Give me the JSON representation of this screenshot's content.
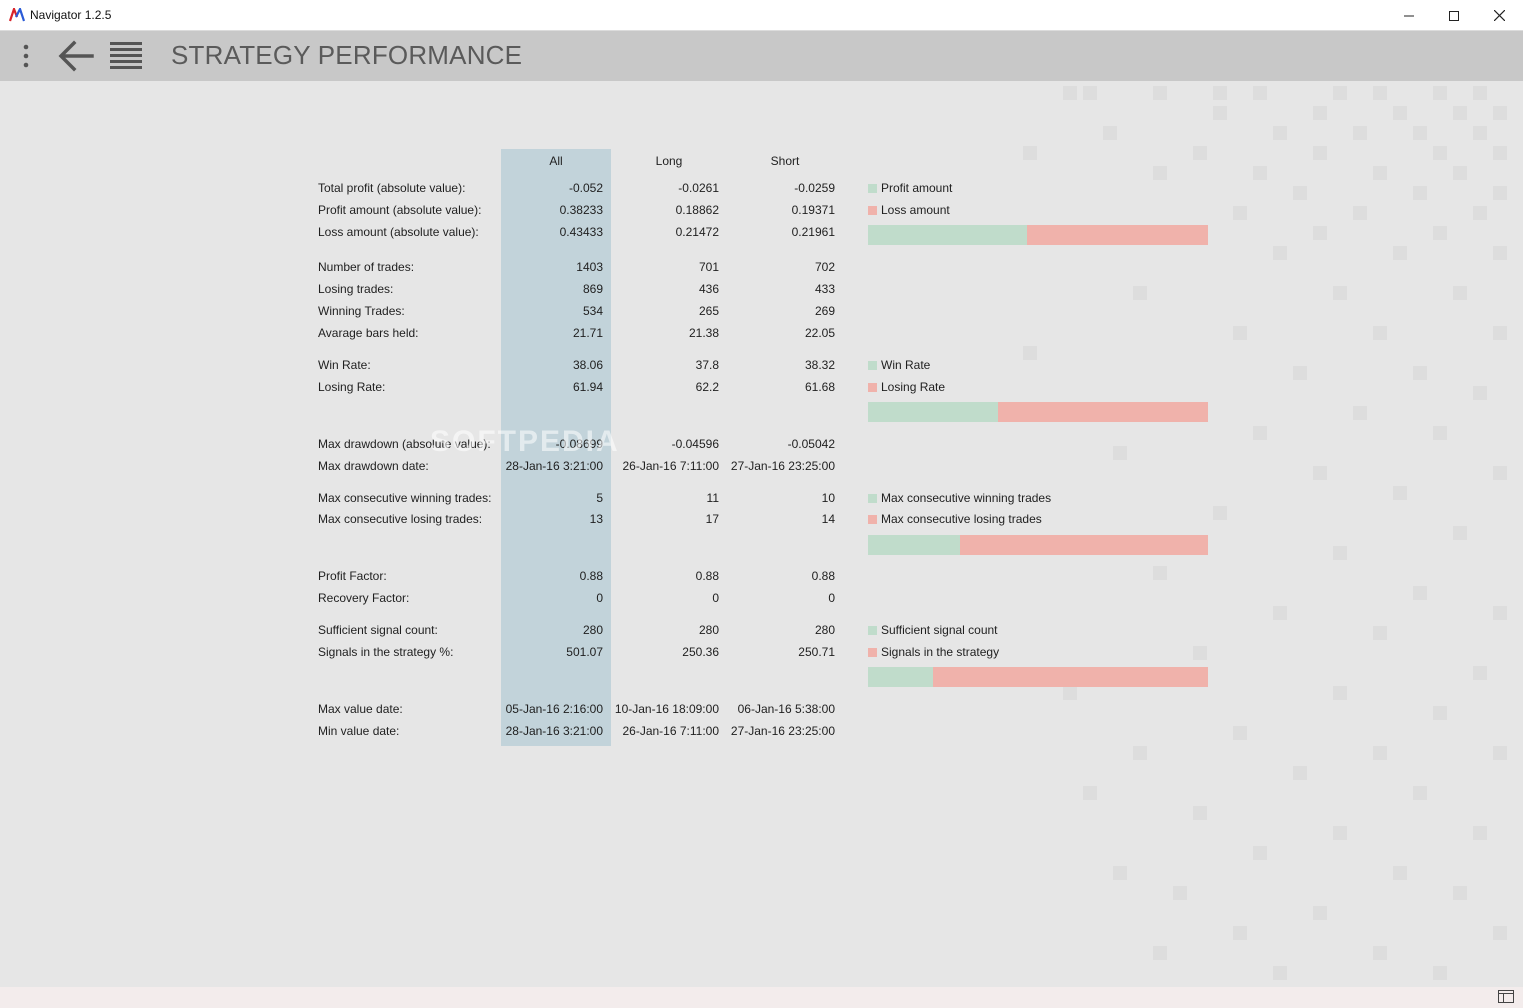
{
  "window": {
    "title": "Navigator 1.2.5",
    "minimize": "—",
    "maximize": "☐",
    "close": "✕"
  },
  "header": {
    "title": "STRATEGY PERFORMANCE",
    "icons": [
      "more-vertical-icon",
      "back-arrow-icon",
      "list-icon"
    ]
  },
  "watermark": "SOFTPEDIA",
  "columns": {
    "all": "All",
    "long": "Long",
    "short": "Short"
  },
  "rows": [
    {
      "label": "Total profit (absolute value):",
      "all": "-0.052",
      "long": "-0.0261",
      "short": "-0.0259"
    },
    {
      "label": "Profit amount (absolute value):",
      "all": "0.38233",
      "long": "0.18862",
      "short": "0.19371"
    },
    {
      "label": "Loss amount (absolute value):",
      "all": "0.43433",
      "long": "0.21472",
      "short": "0.21961"
    },
    {
      "label": "Number of trades:",
      "all": "1403",
      "long": "701",
      "short": "702"
    },
    {
      "label": "Losing trades:",
      "all": "869",
      "long": "436",
      "short": "433"
    },
    {
      "label": "Winning Trades:",
      "all": "534",
      "long": "265",
      "short": "269"
    },
    {
      "label": "Avarage bars held:",
      "all": "21.71",
      "long": "21.38",
      "short": "22.05"
    },
    {
      "label": "Win Rate:",
      "all": "38.06",
      "long": "37.8",
      "short": "38.32"
    },
    {
      "label": "Losing Rate:",
      "all": "61.94",
      "long": "62.2",
      "short": "61.68"
    },
    {
      "label": "Max drawdown (absolute value):",
      "all": "-0.08699",
      "long": "-0.04596",
      "short": "-0.05042"
    },
    {
      "label": "Max drawdown date:",
      "all": "28-Jan-16 3:21:00",
      "long": "26-Jan-16 7:11:00",
      "short": "27-Jan-16 23:25:00"
    },
    {
      "label": "Max consecutive winning trades:",
      "all": "5",
      "long": "11",
      "short": "10"
    },
    {
      "label": "Max consecutive losing trades:",
      "all": "13",
      "long": "17",
      "short": "14"
    },
    {
      "label": "Profit Factor:",
      "all": "0.88",
      "long": "0.88",
      "short": "0.88"
    },
    {
      "label": "Recovery Factor:",
      "all": "0",
      "long": "0",
      "short": "0"
    },
    {
      "label": "Sufficient signal count:",
      "all": "280",
      "long": "280",
      "short": "280"
    },
    {
      "label": "Signals in the strategy %:",
      "all": "501.07",
      "long": "250.36",
      "short": "250.71"
    },
    {
      "label": "Max value date:",
      "all": "05-Jan-16 2:16:00",
      "long": "10-Jan-16 18:09:00",
      "short": "06-Jan-16 5:38:00"
    },
    {
      "label": "Min value date:",
      "all": "28-Jan-16 3:21:00",
      "long": "26-Jan-16 7:11:00",
      "short": "27-Jan-16 23:25:00"
    }
  ],
  "charts": [
    {
      "green_label": "Profit amount",
      "red_label": "Loss amount",
      "green_fraction": 0.468
    },
    {
      "green_label": "Win Rate",
      "red_label": "Losing Rate",
      "green_fraction": 0.381
    },
    {
      "green_label": "Max consecutive winning trades",
      "red_label": "Max consecutive losing trades",
      "green_fraction": 0.27
    },
    {
      "green_label": "Sufficient signal count",
      "red_label": "Signals in the strategy",
      "green_fraction": 0.19
    }
  ],
  "colors": {
    "green": "#c0dccb",
    "red": "#f0b2ab",
    "highlight": "#c2d3da",
    "header_bg": "#c8c8c8"
  }
}
